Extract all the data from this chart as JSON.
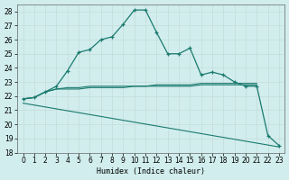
{
  "xlabel": "Humidex (Indice chaleur)",
  "background_color": "#d1eded",
  "grid_color": "#b8d8d8",
  "line_color": "#1a7a6e",
  "xlim": [
    -0.5,
    23.5
  ],
  "ylim": [
    18,
    28.5
  ],
  "xtick_labels": [
    "0",
    "1",
    "2",
    "3",
    "4",
    "5",
    "6",
    "7",
    "8",
    "9",
    "10",
    "11",
    "12",
    "13",
    "14",
    "15",
    "16",
    "17",
    "18",
    "19",
    "20",
    "21",
    "22",
    "23"
  ],
  "yticks": [
    18,
    19,
    20,
    21,
    22,
    23,
    24,
    25,
    26,
    27,
    28
  ],
  "line1_x": [
    0,
    1,
    2,
    3,
    4,
    5,
    6,
    7,
    8,
    9,
    10,
    11,
    12,
    13,
    14,
    15,
    16,
    17,
    18,
    19,
    20,
    21,
    22,
    23
  ],
  "line1_y": [
    21.8,
    21.9,
    22.3,
    22.7,
    23.8,
    25.1,
    25.3,
    26.0,
    26.2,
    27.1,
    28.1,
    28.1,
    26.5,
    25.0,
    25.0,
    25.4,
    23.5,
    23.7,
    23.5,
    23.0,
    22.7,
    22.7,
    19.2,
    18.5
  ],
  "line2_x": [
    0,
    1,
    2,
    3,
    4,
    5,
    6,
    7,
    8,
    9,
    10,
    11,
    12,
    13,
    14,
    15,
    16,
    17,
    18,
    19,
    20,
    21
  ],
  "line2_y": [
    21.8,
    21.9,
    22.3,
    22.5,
    22.5,
    22.5,
    22.6,
    22.6,
    22.6,
    22.6,
    22.7,
    22.7,
    22.7,
    22.7,
    22.7,
    22.7,
    22.8,
    22.8,
    22.8,
    22.8,
    22.8,
    22.8
  ],
  "line3_x": [
    0,
    1,
    2,
    3,
    4,
    5,
    6,
    7,
    8,
    9,
    10,
    11,
    12,
    13,
    14,
    15,
    16,
    17,
    18,
    19,
    20,
    21
  ],
  "line3_y": [
    21.8,
    21.9,
    22.3,
    22.5,
    22.6,
    22.6,
    22.7,
    22.7,
    22.7,
    22.7,
    22.7,
    22.7,
    22.8,
    22.8,
    22.8,
    22.8,
    22.9,
    22.9,
    22.9,
    22.9,
    22.9,
    22.9
  ],
  "line4_x": [
    0,
    23
  ],
  "line4_y": [
    21.5,
    18.4
  ]
}
